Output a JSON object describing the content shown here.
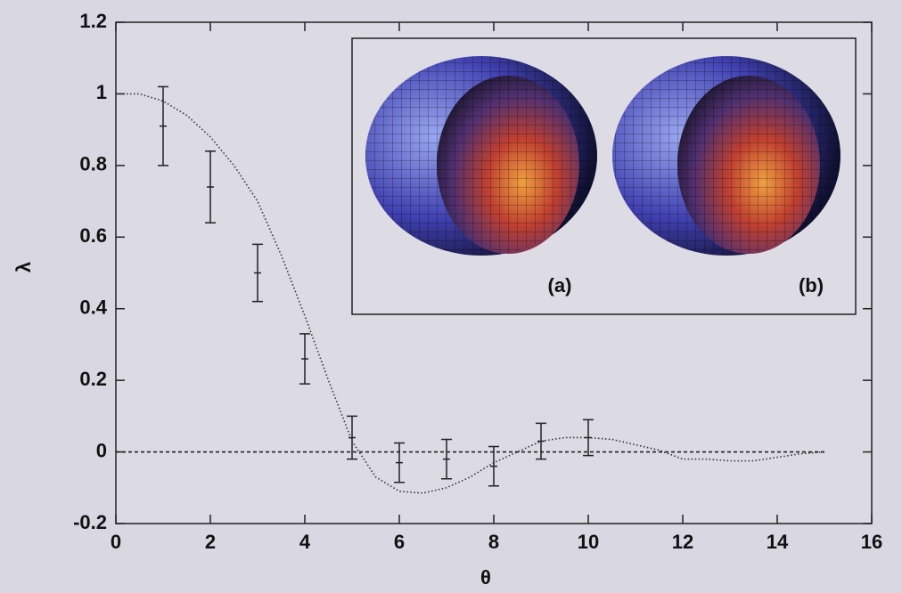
{
  "chart_data": {
    "type": "line",
    "xlabel": "θ",
    "ylabel": "λ",
    "xlim": [
      0,
      16
    ],
    "ylim": [
      -0.2,
      1.2
    ],
    "xticks": [
      0,
      2,
      4,
      6,
      8,
      10,
      12,
      14,
      16
    ],
    "yticks": [
      -0.2,
      0,
      0.2,
      0.4,
      0.6,
      0.8,
      1,
      1.2
    ],
    "inset_labels": [
      "(a)",
      "(b)"
    ],
    "series": [
      {
        "style": "errorbar",
        "color": "#222222",
        "x": [
          1,
          2,
          3,
          4,
          5,
          6,
          7,
          8,
          9,
          10
        ],
        "values": [
          0.91,
          0.74,
          0.5,
          0.26,
          0.04,
          -0.03,
          -0.02,
          -0.04,
          0.03,
          0.04
        ],
        "errors": [
          0.11,
          0.1,
          0.08,
          0.07,
          0.06,
          0.055,
          0.055,
          0.055,
          0.05,
          0.05
        ]
      },
      {
        "style": "dotted",
        "color": "#333333",
        "x": [
          0,
          0.5,
          1,
          1.5,
          2,
          2.5,
          3,
          3.5,
          4,
          4.5,
          5,
          5.5,
          6,
          6.5,
          7,
          7.5,
          8,
          8.5,
          9,
          9.5,
          10,
          10.5,
          11,
          11.5,
          12,
          12.5,
          13,
          13.5,
          14,
          14.5,
          15
        ],
        "values": [
          1.0,
          1.0,
          0.98,
          0.94,
          0.88,
          0.8,
          0.7,
          0.55,
          0.38,
          0.2,
          0.03,
          -0.07,
          -0.11,
          -0.115,
          -0.1,
          -0.07,
          -0.03,
          0.0,
          0.03,
          0.04,
          0.04,
          0.035,
          0.02,
          0.005,
          -0.02,
          -0.02,
          -0.025,
          -0.025,
          -0.015,
          -0.005,
          0
        ]
      },
      {
        "style": "dashed",
        "color": "#222222",
        "x": [
          0,
          15
        ],
        "values": [
          0,
          0
        ]
      }
    ]
  }
}
